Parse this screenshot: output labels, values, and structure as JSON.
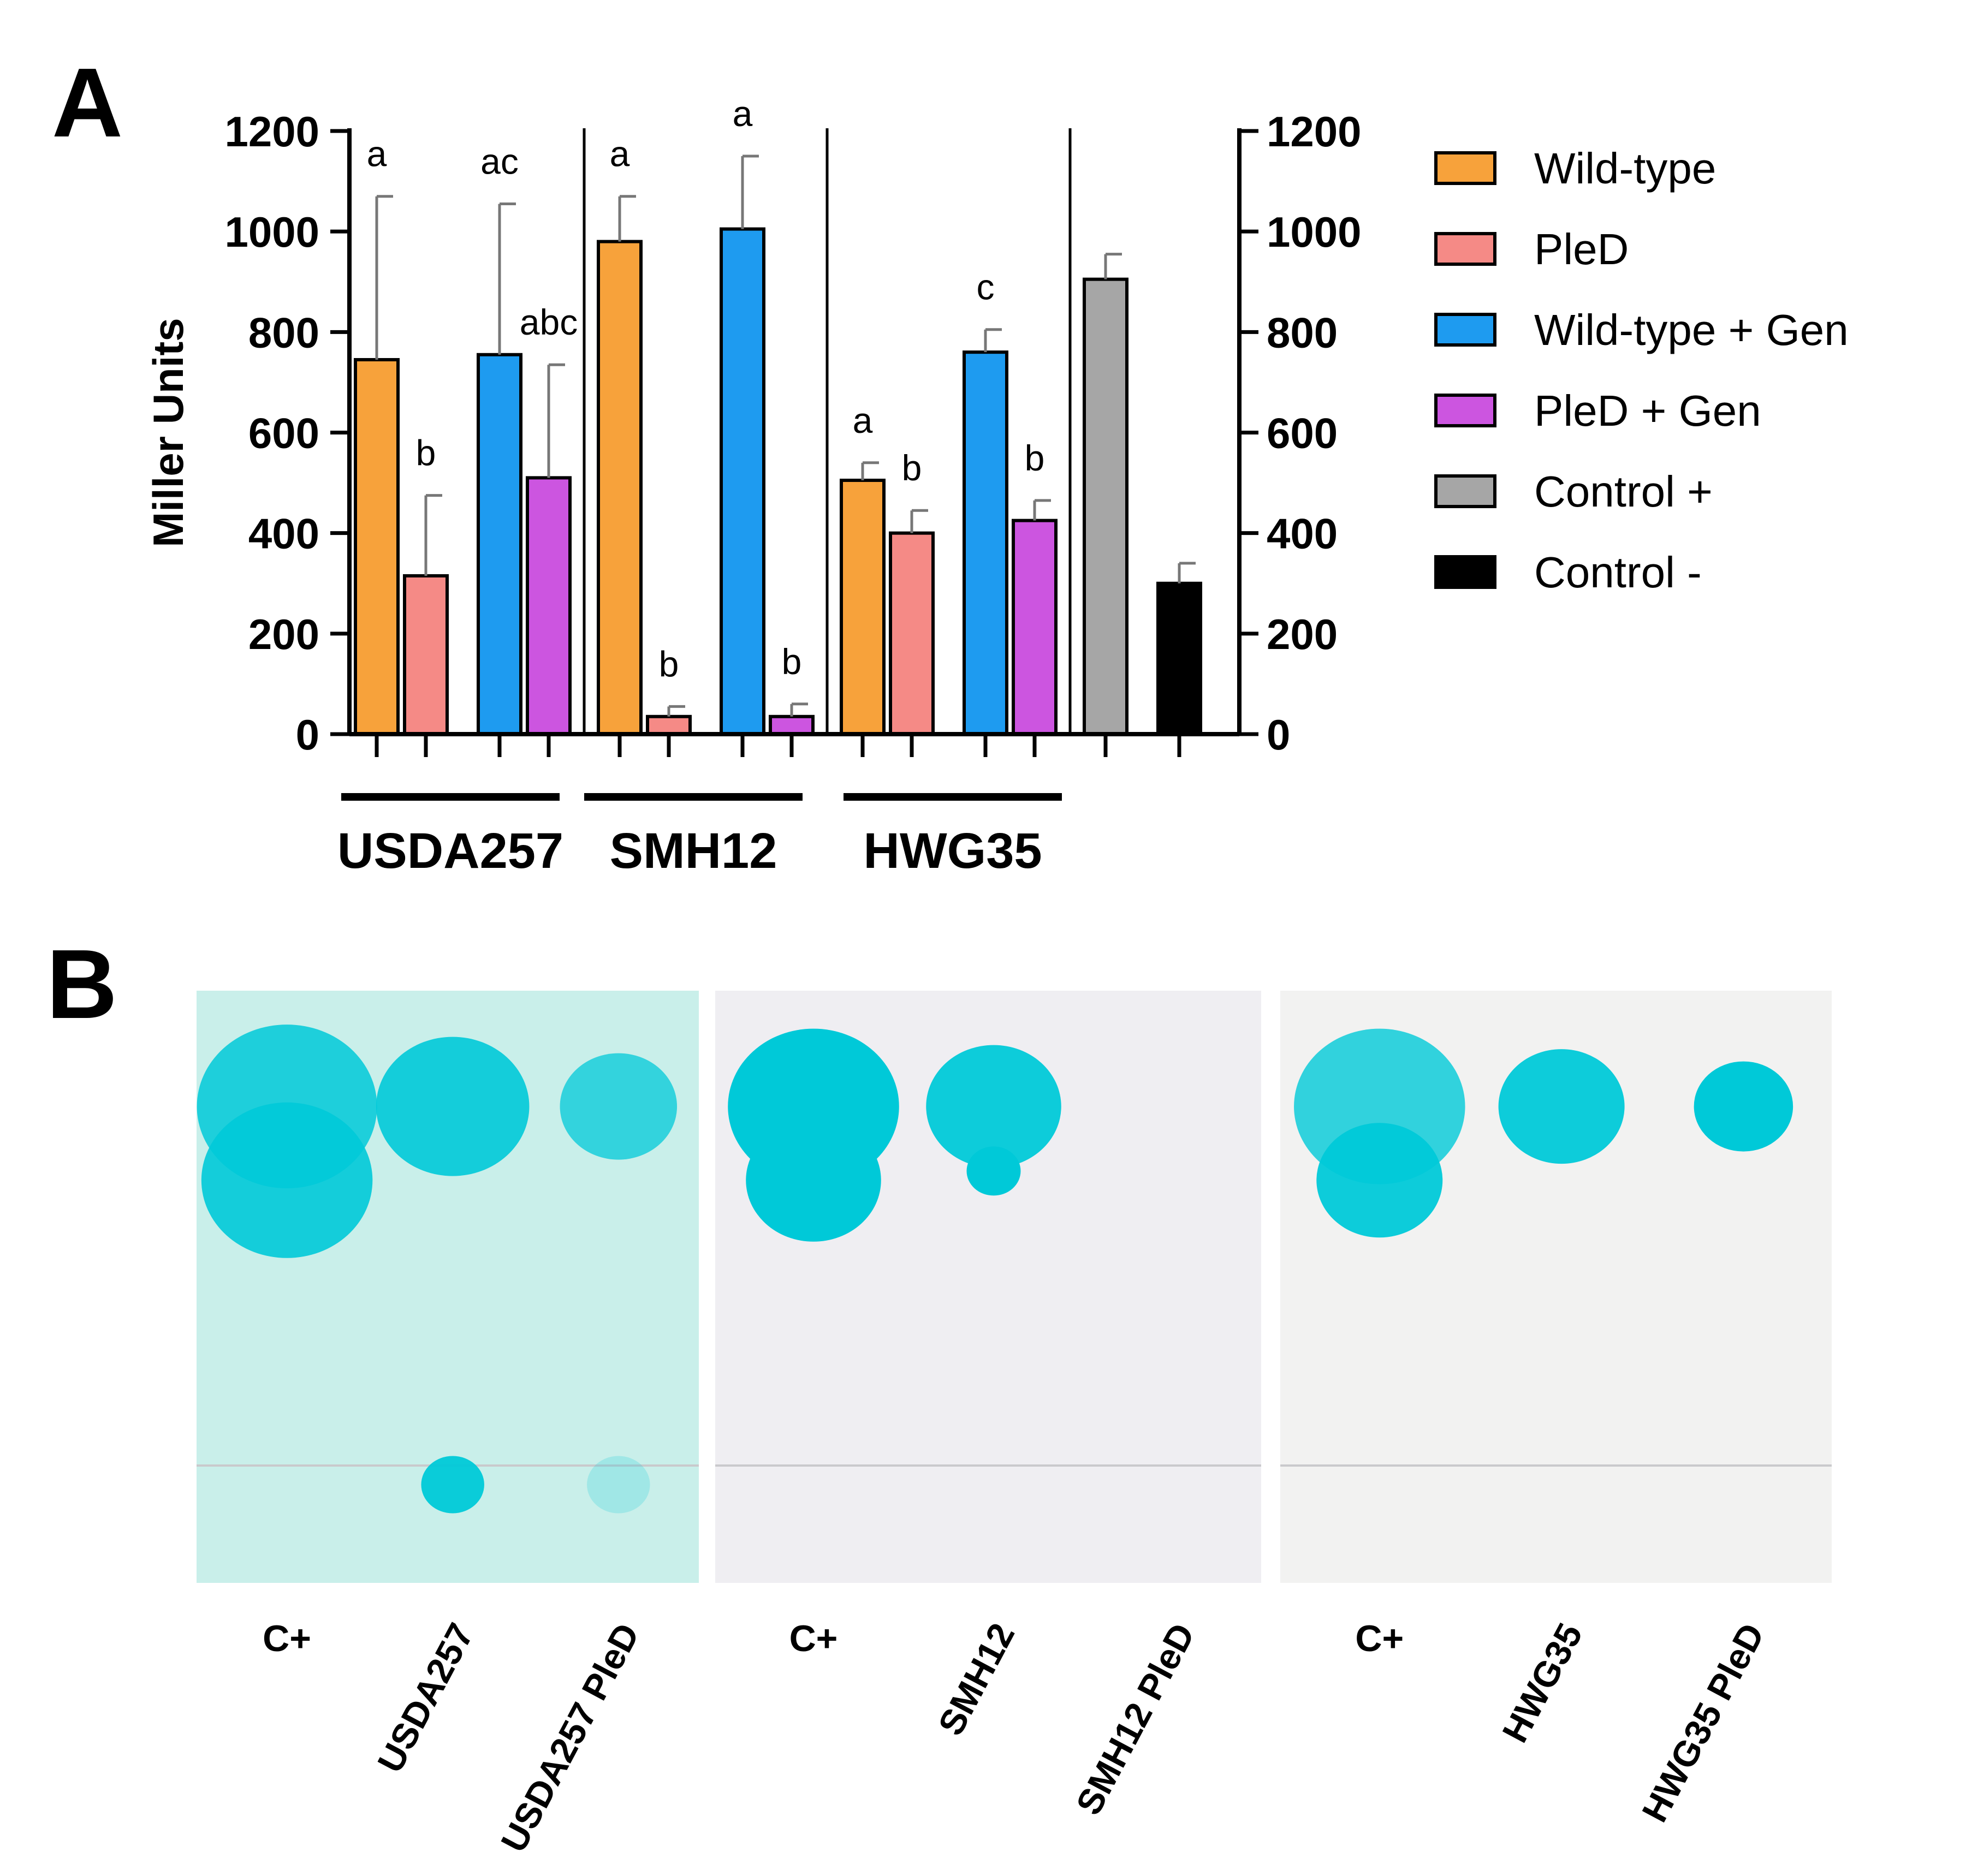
{
  "panel_labels": [
    "A",
    "B"
  ],
  "chart_data": {
    "type": "bar",
    "ylabel": "Miller Units",
    "ylim": [
      0,
      1200
    ],
    "yticks": [
      0,
      200,
      400,
      600,
      800,
      1000,
      1200
    ],
    "grid": false,
    "legend_position": "right",
    "legend": [
      {
        "label": "Wild-type",
        "color": "#F7A23B"
      },
      {
        "label": "PleD",
        "color": "#F58A86"
      },
      {
        "label": "Wild-type + Gen",
        "color": "#1E9BF0"
      },
      {
        "label": "PleD + Gen",
        "color": "#CC55E0"
      },
      {
        "label": "Control +",
        "color": "#A6A6A6"
      },
      {
        "label": "Control -",
        "color": "#000000"
      }
    ],
    "groups": [
      "USDA257",
      "SMH12",
      "HWG35"
    ],
    "bars": [
      {
        "group": "USDA257",
        "series": "Wild-type",
        "value": 745,
        "error": 325,
        "letter": "a"
      },
      {
        "group": "USDA257",
        "series": "PleD",
        "value": 315,
        "error": 160,
        "letter": "b"
      },
      {
        "group": "USDA257",
        "series": "Wild-type + Gen",
        "value": 755,
        "error": 300,
        "letter": "ac"
      },
      {
        "group": "USDA257",
        "series": "PleD + Gen",
        "value": 510,
        "error": 225,
        "letter": "abc"
      },
      {
        "group": "SMH12",
        "series": "Wild-type",
        "value": 980,
        "error": 90,
        "letter": "a"
      },
      {
        "group": "SMH12",
        "series": "PleD",
        "value": 35,
        "error": 20,
        "letter": "b"
      },
      {
        "group": "SMH12",
        "series": "Wild-type + Gen",
        "value": 1005,
        "error": 145,
        "letter": "a"
      },
      {
        "group": "SMH12",
        "series": "PleD + Gen",
        "value": 35,
        "error": 25,
        "letter": "b"
      },
      {
        "group": "HWG35",
        "series": "Wild-type",
        "value": 505,
        "error": 35,
        "letter": "a"
      },
      {
        "group": "HWG35",
        "series": "PleD",
        "value": 400,
        "error": 45,
        "letter": "b"
      },
      {
        "group": "HWG35",
        "series": "Wild-type + Gen",
        "value": 760,
        "error": 45,
        "letter": "c"
      },
      {
        "group": "HWG35",
        "series": "PleD + Gen",
        "value": 425,
        "error": 40,
        "letter": "b"
      },
      {
        "group": "",
        "series": "Control +",
        "value": 905,
        "error": 50,
        "letter": ""
      },
      {
        "group": "",
        "series": "Control -",
        "value": 300,
        "error": 40,
        "letter": ""
      }
    ]
  },
  "plates": [
    {
      "lanes": [
        "C+",
        "USDA257",
        "USDA257 PleD"
      ],
      "background": "#C9EFEA",
      "spots": [
        {
          "lane": "C+",
          "rf": 0.82,
          "size": 1.0,
          "intensity": 0.85
        },
        {
          "lane": "C+",
          "rf": 0.66,
          "size": 0.95,
          "intensity": 0.9
        },
        {
          "lane": "USDA257",
          "rf": 0.82,
          "size": 0.85,
          "intensity": 0.9
        },
        {
          "lane": "USDA257",
          "rf": 0.0,
          "size": 0.35,
          "intensity": 0.95
        },
        {
          "lane": "USDA257 PleD",
          "rf": 0.82,
          "size": 0.65,
          "intensity": 0.75
        },
        {
          "lane": "USDA257 PleD",
          "rf": 0.0,
          "size": 0.35,
          "intensity": 0.2
        }
      ]
    },
    {
      "lanes": [
        "C+",
        "SMH12",
        "SMH12 PleD"
      ],
      "background": "#EFEEF2",
      "spots": [
        {
          "lane": "C+",
          "rf": 0.82,
          "size": 0.95,
          "intensity": 1.0
        },
        {
          "lane": "C+",
          "rf": 0.66,
          "size": 0.75,
          "intensity": 1.0
        },
        {
          "lane": "SMH12",
          "rf": 0.82,
          "size": 0.75,
          "intensity": 0.95
        },
        {
          "lane": "SMH12",
          "rf": 0.68,
          "size": 0.3,
          "intensity": 1.0
        }
      ]
    },
    {
      "lanes": [
        "C+",
        "HWG35",
        "HWG35 PleD"
      ],
      "background": "#F2F2F1",
      "spots": [
        {
          "lane": "C+",
          "rf": 0.82,
          "size": 0.95,
          "intensity": 0.8
        },
        {
          "lane": "C+",
          "rf": 0.66,
          "size": 0.7,
          "intensity": 0.95
        },
        {
          "lane": "HWG35",
          "rf": 0.82,
          "size": 0.7,
          "intensity": 0.95
        },
        {
          "lane": "HWG35 PleD",
          "rf": 0.82,
          "size": 0.55,
          "intensity": 1.0
        }
      ]
    }
  ]
}
